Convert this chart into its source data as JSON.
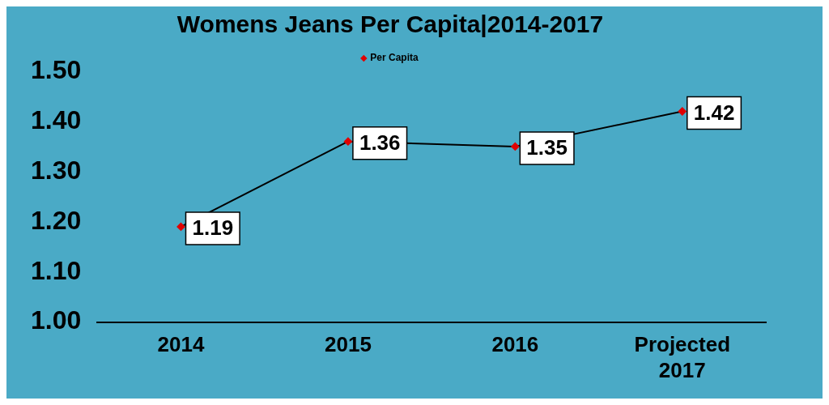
{
  "chart_data": {
    "type": "line",
    "title": "Womens Jeans Per Capita|2014-2017",
    "categories": [
      "2014",
      "2015",
      "2016",
      "Projected 2017"
    ],
    "series": [
      {
        "name": "Per Capita",
        "color": "#000000",
        "colors": [
          "#e00000",
          "#e00000",
          "#e00000",
          "#e00000"
        ],
        "values": [
          1.19,
          1.36,
          1.35,
          1.42
        ]
      }
    ],
    "ylim": [
      1.0,
      1.5
    ],
    "yticks": [
      {
        "value": 1.0,
        "label": "1.00"
      },
      {
        "value": 1.1,
        "label": "1.10"
      },
      {
        "value": 1.2,
        "label": "1.20"
      },
      {
        "value": 1.3,
        "label": "1.30"
      },
      {
        "value": 1.4,
        "label": "1.40"
      },
      {
        "value": 1.5,
        "label": "1.50"
      }
    ],
    "marker": "diamond",
    "line_style": "solid",
    "legend": "top",
    "grid": false,
    "data_labels": true
  }
}
